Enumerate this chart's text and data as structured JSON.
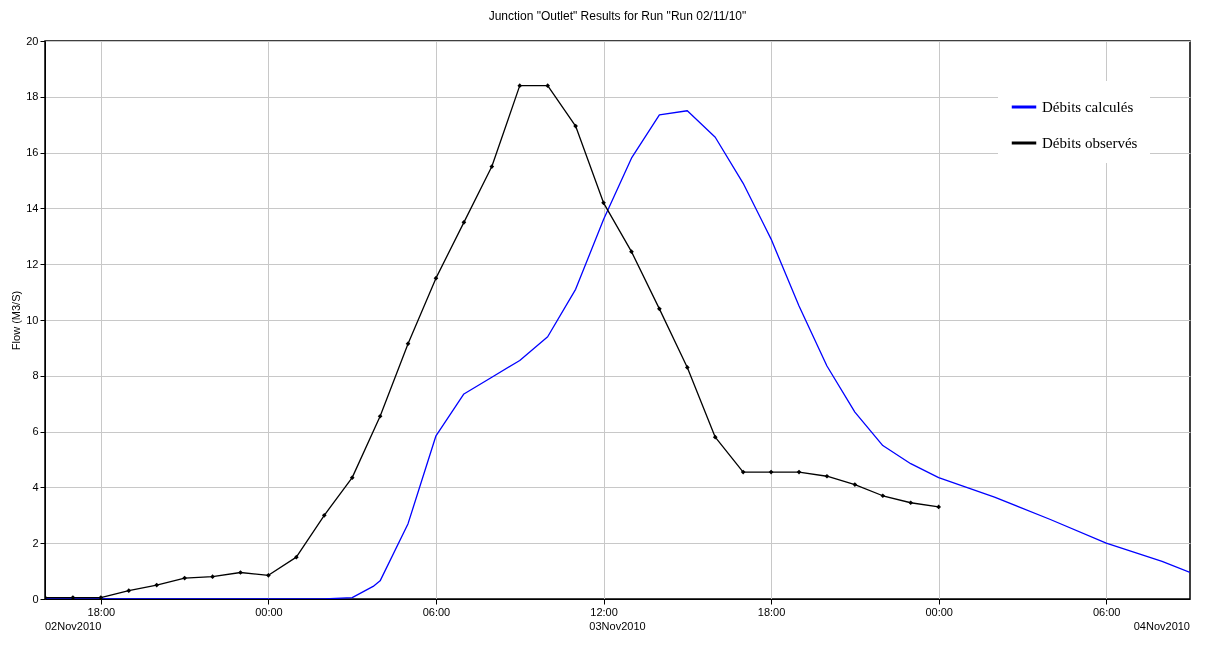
{
  "chart_data": {
    "type": "line",
    "title": "Junction \"Outlet\" Results for Run \"Run 02/11/10\"",
    "ylabel": "Flow (M3/S)",
    "xlim": [
      "2010-11-02T16:00",
      "2010-11-04T09:00"
    ],
    "xticks": [
      {
        "value": "2010-11-02T18:00",
        "label": "18:00"
      },
      {
        "value": "2010-11-03T00:00",
        "label": "00:00"
      },
      {
        "value": "2010-11-03T06:00",
        "label": "06:00"
      },
      {
        "value": "2010-11-03T12:00",
        "label": "12:00"
      },
      {
        "value": "2010-11-03T18:00",
        "label": "18:00"
      },
      {
        "value": "2010-11-04T00:00",
        "label": "00:00"
      },
      {
        "value": "2010-11-04T06:00",
        "label": "06:00"
      }
    ],
    "ylim": [
      0,
      20
    ],
    "yticks": [
      0,
      2,
      4,
      6,
      8,
      10,
      12,
      14,
      16,
      18,
      20
    ],
    "grid": true,
    "legend": "top right",
    "annotations": [
      "02Nov2010",
      "03Nov2010",
      "04Nov2010"
    ],
    "series": [
      {
        "name": "Débits calculés",
        "color": "#0000ff",
        "marker": "none",
        "x": [
          "2010-11-02T16:00",
          "2010-11-03T02:00",
          "2010-11-03T03:00",
          "2010-11-03T03:45",
          "2010-11-03T04:00",
          "2010-11-03T05:00",
          "2010-11-03T06:00",
          "2010-11-03T07:00",
          "2010-11-03T08:00",
          "2010-11-03T09:00",
          "2010-11-03T10:00",
          "2010-11-03T11:00",
          "2010-11-03T12:00",
          "2010-11-03T13:00",
          "2010-11-03T14:00",
          "2010-11-03T15:00",
          "2010-11-03T16:00",
          "2010-11-03T17:00",
          "2010-11-03T18:00",
          "2010-11-03T19:00",
          "2010-11-03T20:00",
          "2010-11-03T21:00",
          "2010-11-03T22:00",
          "2010-11-03T23:00",
          "2010-11-04T00:00",
          "2010-11-04T02:00",
          "2010-11-04T04:00",
          "2010-11-04T06:00",
          "2010-11-04T08:00",
          "2010-11-04T09:00"
        ],
        "values": [
          0,
          0,
          0.05,
          0.45,
          0.65,
          2.7,
          5.85,
          7.35,
          7.95,
          8.55,
          9.4,
          11.1,
          13.6,
          15.8,
          17.35,
          17.5,
          16.55,
          14.9,
          12.9,
          10.5,
          8.35,
          6.7,
          5.5,
          4.85,
          4.35,
          3.65,
          2.85,
          2.0,
          1.35,
          0.95
        ]
      },
      {
        "name": "Débits observés",
        "color": "#000000",
        "marker": "diamond",
        "x": [
          "2010-11-02T16:00",
          "2010-11-02T17:00",
          "2010-11-02T18:00",
          "2010-11-02T19:00",
          "2010-11-02T20:00",
          "2010-11-02T21:00",
          "2010-11-02T22:00",
          "2010-11-02T23:00",
          "2010-11-03T00:00",
          "2010-11-03T01:00",
          "2010-11-03T02:00",
          "2010-11-03T03:00",
          "2010-11-03T04:00",
          "2010-11-03T05:00",
          "2010-11-03T06:00",
          "2010-11-03T07:00",
          "2010-11-03T08:00",
          "2010-11-03T09:00",
          "2010-11-03T10:00",
          "2010-11-03T11:00",
          "2010-11-03T12:00",
          "2010-11-03T13:00",
          "2010-11-03T14:00",
          "2010-11-03T15:00",
          "2010-11-03T16:00",
          "2010-11-03T17:00",
          "2010-11-03T18:00",
          "2010-11-03T19:00",
          "2010-11-03T20:00",
          "2010-11-03T21:00",
          "2010-11-03T22:00",
          "2010-11-03T23:00",
          "2010-11-04T00:00"
        ],
        "values": [
          0.05,
          0.05,
          0.05,
          0.3,
          0.5,
          0.75,
          0.8,
          0.95,
          0.85,
          1.5,
          3.0,
          4.35,
          6.55,
          9.15,
          11.5,
          13.5,
          15.5,
          18.4,
          18.4,
          16.95,
          14.2,
          12.45,
          10.4,
          8.3,
          5.8,
          4.55,
          4.55,
          4.55,
          4.4,
          4.1,
          3.7,
          3.45,
          3.3
        ]
      }
    ]
  }
}
